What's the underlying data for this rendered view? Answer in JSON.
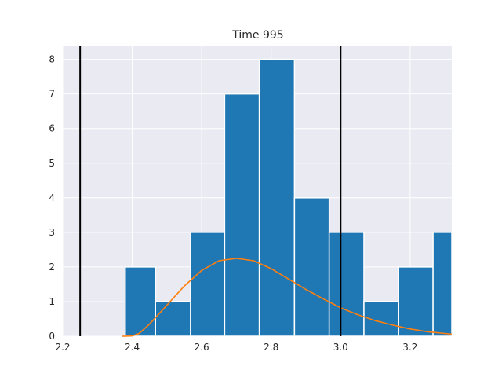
{
  "chart_data": {
    "type": "bar",
    "title": "Time 995",
    "xlabel": "",
    "ylabel": "",
    "xlim": [
      2.2,
      3.32
    ],
    "ylim": [
      0,
      8.4
    ],
    "grid": true,
    "x_ticks": [
      2.2,
      2.4,
      2.6,
      2.8,
      3.0,
      3.2
    ],
    "x_tick_labels": [
      "2.2",
      "2.4",
      "2.6",
      "2.8",
      "3.0",
      "3.2"
    ],
    "y_ticks": [
      0,
      1,
      2,
      3,
      4,
      5,
      6,
      7,
      8
    ],
    "y_tick_labels": [
      "0",
      "1",
      "2",
      "3",
      "4",
      "5",
      "6",
      "7",
      "8"
    ],
    "bins": [
      {
        "x0": 2.38,
        "x1": 2.467,
        "count": 2
      },
      {
        "x0": 2.467,
        "x1": 2.568,
        "count": 1
      },
      {
        "x0": 2.568,
        "x1": 2.666,
        "count": 3
      },
      {
        "x0": 2.666,
        "x1": 2.766,
        "count": 7
      },
      {
        "x0": 2.766,
        "x1": 2.867,
        "count": 8
      },
      {
        "x0": 2.867,
        "x1": 2.967,
        "count": 4
      },
      {
        "x0": 2.967,
        "x1": 3.067,
        "count": 3
      },
      {
        "x0": 3.067,
        "x1": 3.167,
        "count": 1
      },
      {
        "x0": 3.167,
        "x1": 3.266,
        "count": 2
      },
      {
        "x0": 3.266,
        "x1": 3.366,
        "count": 3
      }
    ],
    "density_curve": {
      "x": [
        2.37,
        2.38,
        2.4,
        2.42,
        2.45,
        2.5,
        2.55,
        2.6,
        2.65,
        2.7,
        2.75,
        2.8,
        2.85,
        2.9,
        2.95,
        3.0,
        3.05,
        3.1,
        3.15,
        3.2,
        3.25,
        3.3,
        3.32
      ],
      "y": [
        0.0,
        0.0,
        0.01,
        0.08,
        0.35,
        0.9,
        1.45,
        1.9,
        2.18,
        2.25,
        2.18,
        1.95,
        1.65,
        1.35,
        1.08,
        0.82,
        0.62,
        0.45,
        0.32,
        0.21,
        0.13,
        0.08,
        0.06
      ],
      "color": "#ff7f0e"
    },
    "vertical_lines": [
      2.25,
      3.0
    ],
    "bar_color": "#1f77b4",
    "background_color": "#eaeaf2",
    "grid_color": "#ffffff",
    "vline_color": "#000000"
  }
}
